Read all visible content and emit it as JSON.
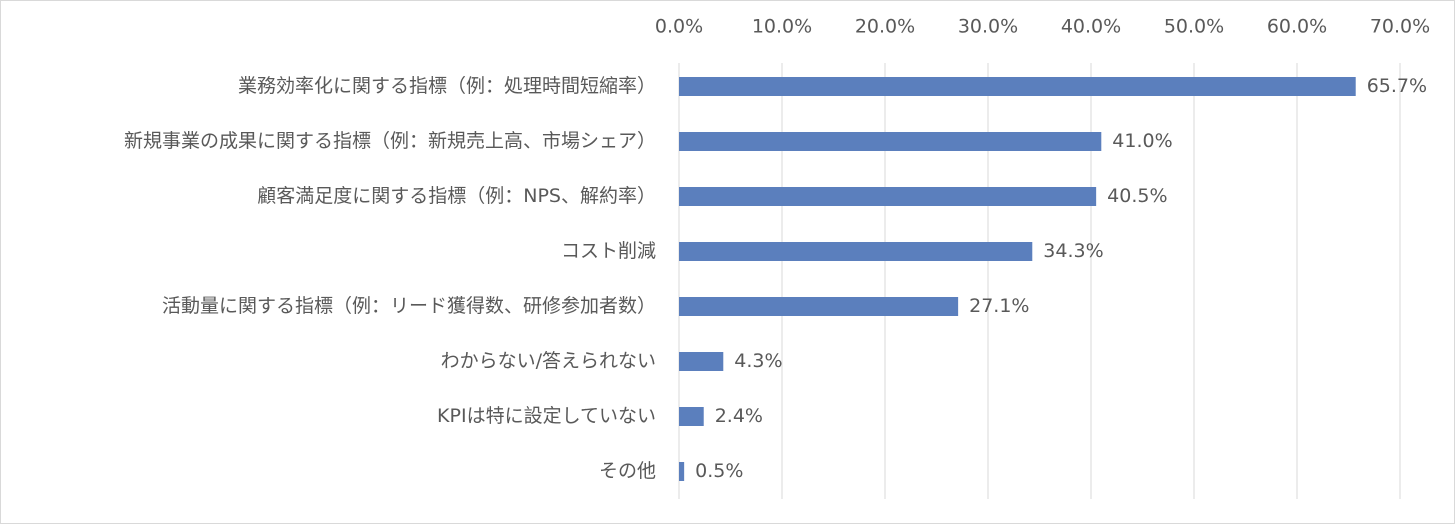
{
  "chart_data": {
    "type": "barh",
    "categories": [
      "業務効率化に関する指標（例：処理時間短縮率）",
      "新規事業の成果に関する指標（例：新規売上高、市場シェア）",
      "顧客満足度に関する指標（例：NPS、解約率）",
      "コスト削減",
      "活動量に関する指標（例：リード獲得数、研修参加者数）",
      "わからない/答えられない",
      "KPIは特に設定していない",
      "その他"
    ],
    "values": [
      65.7,
      41.0,
      40.5,
      34.3,
      27.1,
      4.3,
      2.4,
      0.5
    ],
    "value_labels": [
      "65.7%",
      "41.0%",
      "40.5%",
      "34.3%",
      "27.1%",
      "4.3%",
      "2.4%",
      "0.5%"
    ],
    "color": "#5b7fbd",
    "xlim": [
      0,
      70
    ],
    "xticks": [
      {
        "value": 0,
        "label": "0.0%"
      },
      {
        "value": 10,
        "label": "10.0%"
      },
      {
        "value": 20,
        "label": "20.0%"
      },
      {
        "value": 30,
        "label": "30.0%"
      },
      {
        "value": 40,
        "label": "40.0%"
      },
      {
        "value": 50,
        "label": "50.0%"
      },
      {
        "value": 60,
        "label": "60.0%"
      },
      {
        "value": 70,
        "label": "70.0%"
      }
    ],
    "grid": true
  }
}
